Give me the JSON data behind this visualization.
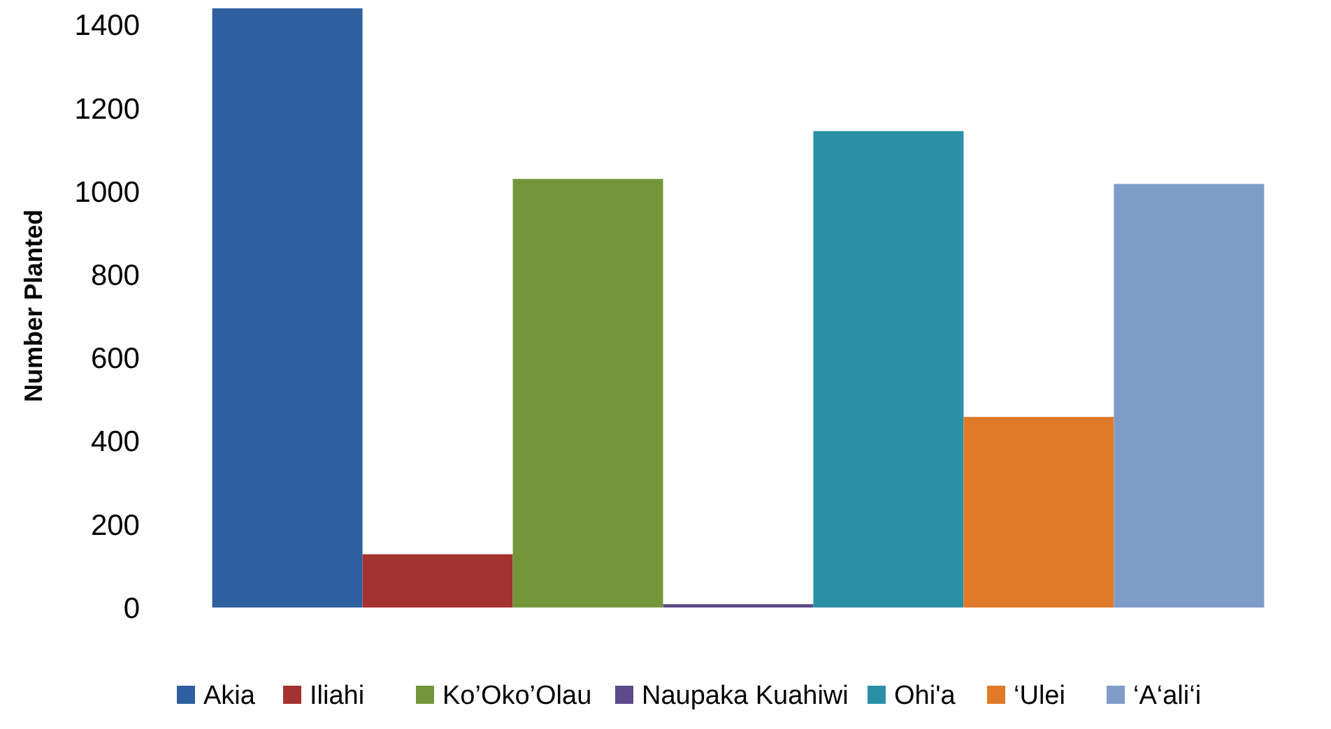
{
  "chart_data": {
    "type": "bar",
    "ylabel": "Number Planted",
    "categories": [
      null
    ],
    "series": [
      {
        "name": "Akia",
        "color": "#2e5f9e",
        "values": [
          1440
        ]
      },
      {
        "name": "Iliahi",
        "color": "#a33230",
        "values": [
          128
        ]
      },
      {
        "name": "Ko’Oko’Olau",
        "color": "#74963a",
        "values": [
          1030
        ]
      },
      {
        "name": "Naupaka Kuahiwi",
        "color": "#5e4a8a",
        "values": [
          8
        ]
      },
      {
        "name": "Ohi'a",
        "color": "#2a90a8",
        "values": [
          1145
        ]
      },
      {
        "name": "‘Ulei",
        "color": "#e07a28",
        "values": [
          458
        ]
      },
      {
        "name": "‘A‘ali‘i",
        "color": "#7f9cc8",
        "values": [
          1018
        ]
      }
    ],
    "ylim": [
      0,
      1450
    ],
    "yticks": [
      0,
      200,
      400,
      600,
      800,
      1000,
      1200,
      1400
    ],
    "grid": false,
    "legend": "bottom"
  }
}
